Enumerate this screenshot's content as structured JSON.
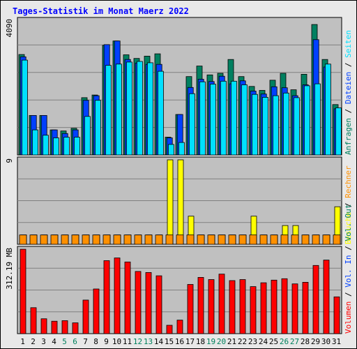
{
  "title": "Tages-Statistik im Monat Maerz 2022",
  "colors": {
    "background": "#c0c0c0",
    "grid": "#808080",
    "title": "#0000ff",
    "hits": "#008060",
    "files": "#0040ff",
    "pages": "#00e0ff",
    "visits": "#ffff00",
    "sites": "#ff9000",
    "kbytes": "#ff0000",
    "weekend_label": "#00805c",
    "weekday_label": "#000000"
  },
  "chart_data": [
    {
      "type": "bar",
      "panel": "hits-files-pages",
      "ytick_label": "4090",
      "ylim": [
        0,
        4090
      ],
      "categories": [
        "1",
        "2",
        "3",
        "4",
        "5",
        "6",
        "7",
        "8",
        "9",
        "10",
        "11",
        "12",
        "13",
        "14",
        "15",
        "16",
        "17",
        "18",
        "19",
        "20",
        "21",
        "22",
        "23",
        "24",
        "25",
        "26",
        "27",
        "28",
        "29",
        "30",
        "31"
      ],
      "weekend_days": [
        "5",
        "6",
        "12",
        "13",
        "19",
        "20",
        "26",
        "27"
      ],
      "legend": [
        {
          "label": "Anfragen",
          "color_key": "hits"
        },
        {
          "label": "Dateien",
          "color_key": "files"
        },
        {
          "label": "Seiten",
          "color_key": "pages"
        }
      ],
      "series": [
        {
          "name": "Anfragen",
          "color_key": "hits",
          "values": [
            3050,
            1200,
            1200,
            760,
            730,
            810,
            1740,
            1820,
            3330,
            3460,
            3040,
            2930,
            3000,
            3070,
            540,
            1230,
            2380,
            2700,
            2430,
            2480,
            2900,
            2380,
            2080,
            1960,
            2270,
            2480,
            1980,
            2450,
            3960,
            2900,
            1530
          ]
        },
        {
          "name": "Dateien",
          "color_key": "files",
          "values": [
            2980,
            1200,
            1200,
            760,
            650,
            760,
            1660,
            1800,
            3350,
            3460,
            2900,
            2790,
            2750,
            2750,
            520,
            1230,
            2050,
            2300,
            2230,
            2390,
            2160,
            2250,
            1940,
            1850,
            2070,
            2040,
            1800,
            2130,
            3500,
            2670,
            1400
          ]
        },
        {
          "name": "Seiten",
          "color_key": "pages",
          "values": [
            2880,
            760,
            600,
            520,
            540,
            540,
            1170,
            1660,
            2720,
            2760,
            2820,
            2840,
            2800,
            2540,
            320,
            380,
            1860,
            2220,
            2150,
            2240,
            2240,
            2130,
            1840,
            1750,
            1800,
            1880,
            1740,
            2100,
            2160,
            2760,
            1430
          ]
        }
      ]
    },
    {
      "type": "bar",
      "panel": "visits-sites",
      "ytick_label": "9",
      "ylim": [
        0,
        9
      ],
      "legend": [
        {
          "label": "Besuche",
          "color_key": "visits"
        },
        {
          "label": "Rechner",
          "color_key": "sites"
        }
      ],
      "series": [
        {
          "name": "Besuche",
          "color_key": "visits",
          "values": [
            1,
            1,
            1,
            1,
            1,
            1,
            1,
            1,
            1,
            1,
            1,
            1,
            1,
            1,
            9,
            9,
            3,
            1,
            1,
            1,
            1,
            1,
            3,
            1,
            1,
            2,
            2,
            1,
            1,
            1,
            4
          ]
        },
        {
          "name": "Rechner",
          "color_key": "sites",
          "values": [
            1,
            1,
            1,
            1,
            1,
            1,
            1,
            1,
            1,
            1,
            1,
            1,
            1,
            1,
            1,
            1,
            1,
            1,
            1,
            1,
            1,
            1,
            1,
            1,
            1,
            1,
            1,
            1,
            1,
            1,
            1
          ]
        }
      ]
    },
    {
      "type": "bar",
      "panel": "volume",
      "ytick_label": "312.19 MB",
      "ylim": [
        0,
        312.19
      ],
      "legend": [
        {
          "label": "Volumen",
          "color_key": "kbytes"
        },
        {
          "label": "Vol. In",
          "color_key": "files"
        },
        {
          "label": "Vol. Out",
          "color_key": "hits"
        }
      ],
      "series": [
        {
          "name": "Volumen",
          "color_key": "kbytes",
          "values": [
            312,
            96,
            55,
            46,
            48,
            40,
            124,
            165,
            270,
            280,
            265,
            230,
            226,
            214,
            31,
            50,
            182,
            208,
            200,
            220,
            196,
            200,
            174,
            188,
            198,
            203,
            184,
            190,
            252,
            272,
            136
          ]
        }
      ]
    }
  ],
  "legend_separator": " / "
}
